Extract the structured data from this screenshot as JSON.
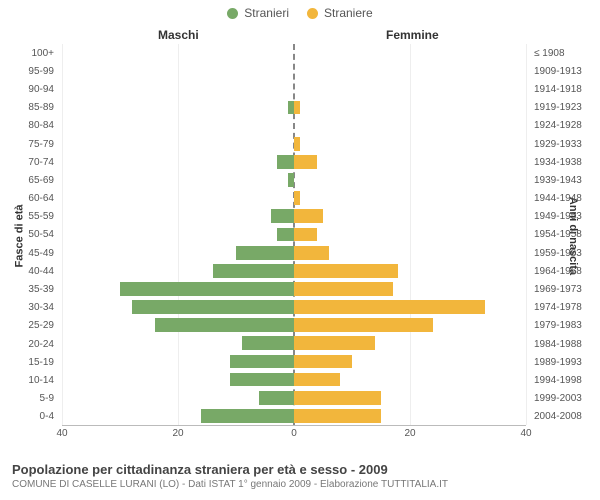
{
  "legend": {
    "male": {
      "label": "Stranieri",
      "color": "#78a967"
    },
    "female": {
      "label": "Straniere",
      "color": "#f2b63c"
    }
  },
  "headings": {
    "male": "Maschi",
    "female": "Femmine"
  },
  "axis_titles": {
    "left": "Fasce di età",
    "right": "Anni di nascita"
  },
  "chart": {
    "type": "population-pyramid",
    "x_max": 40,
    "x_ticks": [
      40,
      20,
      0,
      20,
      40
    ],
    "background_color": "#ffffff",
    "grid_color": "#eeeeee",
    "axis_color": "#bbbbbb",
    "center_line_color": "#888888",
    "bar_height_pct": 76,
    "rows": [
      {
        "age": "100+",
        "birth": "≤ 1908",
        "m": 0,
        "f": 0
      },
      {
        "age": "95-99",
        "birth": "1909-1913",
        "m": 0,
        "f": 0
      },
      {
        "age": "90-94",
        "birth": "1914-1918",
        "m": 0,
        "f": 0
      },
      {
        "age": "85-89",
        "birth": "1919-1923",
        "m": 1,
        "f": 1
      },
      {
        "age": "80-84",
        "birth": "1924-1928",
        "m": 0,
        "f": 0
      },
      {
        "age": "75-79",
        "birth": "1929-1933",
        "m": 0,
        "f": 1
      },
      {
        "age": "70-74",
        "birth": "1934-1938",
        "m": 3,
        "f": 4
      },
      {
        "age": "65-69",
        "birth": "1939-1943",
        "m": 1,
        "f": 0
      },
      {
        "age": "60-64",
        "birth": "1944-1948",
        "m": 0,
        "f": 1
      },
      {
        "age": "55-59",
        "birth": "1949-1953",
        "m": 4,
        "f": 5
      },
      {
        "age": "50-54",
        "birth": "1954-1958",
        "m": 3,
        "f": 4
      },
      {
        "age": "45-49",
        "birth": "1959-1963",
        "m": 10,
        "f": 6
      },
      {
        "age": "40-44",
        "birth": "1964-1968",
        "m": 14,
        "f": 18
      },
      {
        "age": "35-39",
        "birth": "1969-1973",
        "m": 30,
        "f": 17
      },
      {
        "age": "30-34",
        "birth": "1974-1978",
        "m": 28,
        "f": 33
      },
      {
        "age": "25-29",
        "birth": "1979-1983",
        "m": 24,
        "f": 24
      },
      {
        "age": "20-24",
        "birth": "1984-1988",
        "m": 9,
        "f": 14
      },
      {
        "age": "15-19",
        "birth": "1989-1993",
        "m": 11,
        "f": 10
      },
      {
        "age": "10-14",
        "birth": "1994-1998",
        "m": 11,
        "f": 8
      },
      {
        "age": "5-9",
        "birth": "1999-2003",
        "m": 6,
        "f": 15
      },
      {
        "age": "0-4",
        "birth": "2004-2008",
        "m": 16,
        "f": 15
      }
    ]
  },
  "footer": {
    "title": "Popolazione per cittadinanza straniera per età e sesso - 2009",
    "subtitle": "COMUNE DI CASELLE LURANI (LO) - Dati ISTAT 1° gennaio 2009 - Elaborazione TUTTITALIA.IT"
  },
  "text_color": "#555555",
  "label_fontsize": 10,
  "title_fontsize": 13
}
